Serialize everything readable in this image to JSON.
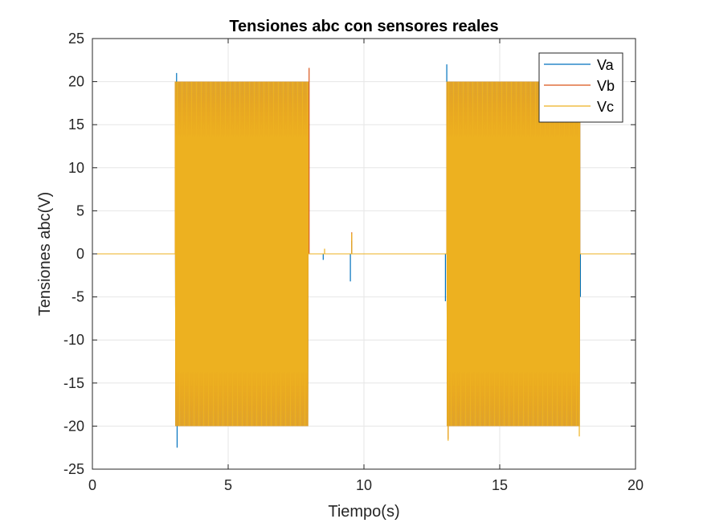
{
  "chart_data": {
    "type": "line",
    "title": "Tensiones abc con sensores reales",
    "xlabel": "Tiempo(s)",
    "ylabel": "Tensiones abc(V)",
    "xlim": [
      0,
      20
    ],
    "ylim": [
      -25,
      25
    ],
    "xticks": [
      0,
      5,
      10,
      15,
      20
    ],
    "yticks": [
      -25,
      -20,
      -15,
      -10,
      -5,
      0,
      5,
      10,
      15,
      20,
      25
    ],
    "grid": true,
    "legend_position": "top-right",
    "series": [
      {
        "name": "Va",
        "color": "#0072BD",
        "amplitude": 20,
        "active_intervals": [
          [
            3.05,
            7.95
          ],
          [
            13.05,
            17.95
          ]
        ],
        "spikes": [
          {
            "x": 3.1,
            "y": 21.0
          },
          {
            "x": 3.12,
            "y": -22.5
          },
          {
            "x": 8.5,
            "y": -0.7
          },
          {
            "x": 9.5,
            "y": -3.2
          },
          {
            "x": 9.55,
            "y": 1.5
          },
          {
            "x": 13.05,
            "y": 22.0
          },
          {
            "x": 13.0,
            "y": -5.5
          },
          {
            "x": 17.97,
            "y": -5.0
          }
        ]
      },
      {
        "name": "Vb",
        "color": "#D95319",
        "amplitude": 20,
        "active_intervals": [
          [
            3.05,
            7.95
          ],
          [
            13.05,
            17.95
          ]
        ],
        "spikes": [
          {
            "x": 7.98,
            "y": 21.6
          },
          {
            "x": 9.55,
            "y": 2.5
          },
          {
            "x": 13.1,
            "y": -21.5
          }
        ]
      },
      {
        "name": "Vc",
        "color": "#EDB120",
        "amplitude": 20,
        "active_intervals": [
          [
            3.05,
            7.95
          ],
          [
            13.05,
            17.95
          ]
        ],
        "spikes": [
          {
            "x": 8.55,
            "y": 0.6
          },
          {
            "x": 9.55,
            "y": 2.4
          },
          {
            "x": 13.1,
            "y": -21.7
          },
          {
            "x": 17.93,
            "y": -21.2
          }
        ]
      }
    ]
  }
}
